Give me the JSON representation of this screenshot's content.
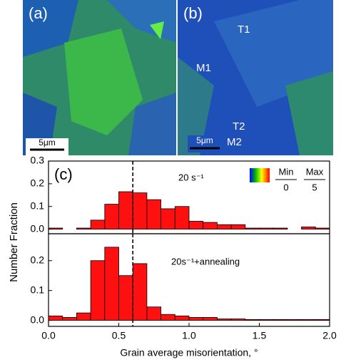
{
  "chart_data": [
    {
      "type": "histogram",
      "panel_label": "(c)",
      "annotation": "20 s⁻¹",
      "ylabel": "Number Fraction",
      "bins": [
        0,
        0.1,
        0.2,
        0.3,
        0.4,
        0.5,
        0.6,
        0.7,
        0.8,
        0.9,
        1.0,
        1.1,
        1.2,
        1.3,
        1.4,
        1.5,
        1.6,
        1.7,
        1.8,
        1.9,
        2.0
      ],
      "values": [
        0.005,
        0,
        0.005,
        0.04,
        0.11,
        0.165,
        0.16,
        0.13,
        0.09,
        0.1,
        0.035,
        0.03,
        0.02,
        0.02,
        0.005,
        0.005,
        0.005,
        0,
        0.01,
        0.005
      ],
      "color": "#ff1010",
      "xlim": [
        0,
        2
      ],
      "ylim": [
        -0.02,
        0.3
      ],
      "yticks": [
        {
          "value": 0,
          "label": "0.0"
        },
        0.1,
        0.2,
        0.3
      ],
      "vline": 0.6,
      "colorbar": {
        "min_label": "Min",
        "max_label": "Max",
        "min": 0,
        "max": 5
      }
    },
    {
      "type": "histogram",
      "annotation": "20s⁻¹+annealing",
      "xlabel": "Grain average misorientation, °",
      "bins": [
        0,
        0.1,
        0.2,
        0.3,
        0.4,
        0.5,
        0.6,
        0.7,
        0.8,
        0.9,
        1.0,
        1.1,
        1.2,
        1.3,
        1.4,
        1.5,
        1.6,
        1.7,
        1.8,
        1.9,
        2.0
      ],
      "values": [
        0.015,
        0.01,
        0.025,
        0.2,
        0.245,
        0.15,
        0.19,
        0.045,
        0.02,
        0.015,
        0.01,
        0.01,
        0.005,
        0.005,
        0.003,
        0.003,
        0.003,
        0.003,
        0.003,
        0.003
      ],
      "color": "#ff1010",
      "xlim": [
        0,
        2
      ],
      "ylim": [
        -0.02,
        0.29
      ],
      "yticks": [
        {
          "value": 0,
          "label": "0.0"
        },
        0.1,
        0.2
      ],
      "xticks": [
        {
          "value": 0,
          "label": "0.0"
        },
        0.5,
        {
          "value": 1,
          "label": "1.0"
        },
        1.5,
        {
          "value": 2,
          "label": "2.0"
        }
      ],
      "vline": 0.6
    }
  ],
  "micrographs": [
    {
      "label": "(a)",
      "scale_bar": "5μm"
    },
    {
      "label": "(b)",
      "scale_bar": "5μm",
      "annotations": [
        "T1",
        "M1",
        "T2",
        "M2"
      ]
    }
  ]
}
